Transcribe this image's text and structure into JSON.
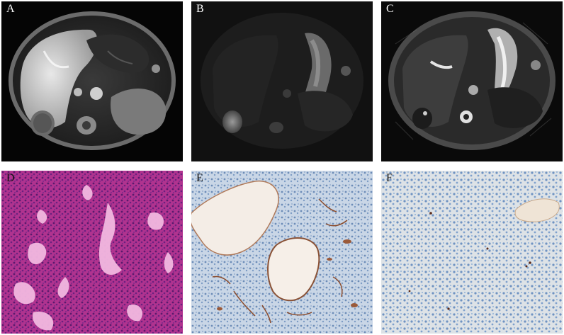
{
  "panels": {
    "a": {
      "label": "A"
    },
    "b": {
      "label": "B"
    },
    "c": {
      "label": "C"
    },
    "d": {
      "label": "D"
    },
    "e": {
      "label": "E"
    },
    "f": {
      "label": "F"
    }
  }
}
